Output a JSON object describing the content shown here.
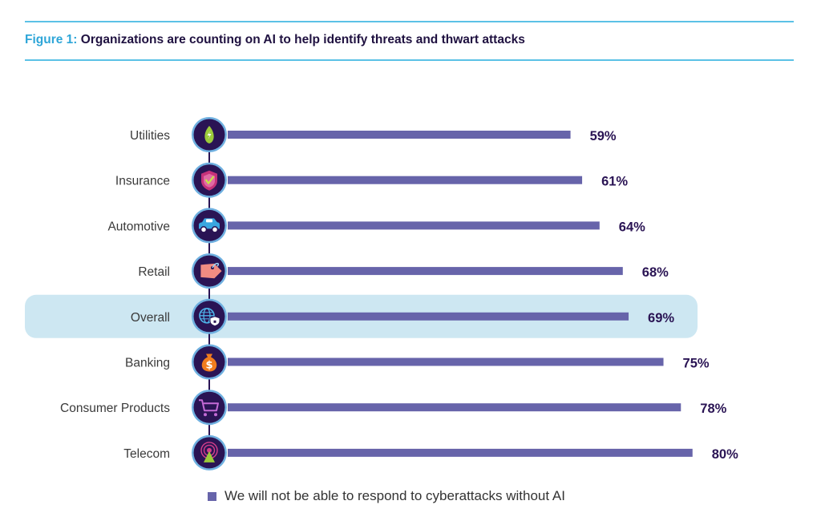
{
  "figure": {
    "number_label": "Figure 1:",
    "title": "Organizations are counting on AI to help identify threats and thwart attacks"
  },
  "colors": {
    "bar": "#6764aa",
    "value_text": "#2a1454",
    "highlight": "#cde7f2",
    "rule": "#5bc1e6",
    "icon_circle": "#2a1454",
    "icon_ring": "#6fb0e0"
  },
  "chart_data": {
    "type": "bar",
    "orientation": "horizontal",
    "categories": [
      "Utilities",
      "Insurance",
      "Automotive",
      "Retail",
      "Overall",
      "Banking",
      "Consumer Products",
      "Telecom"
    ],
    "series": [
      {
        "name": "We will not be able to respond to cyberattacks without AI",
        "values": [
          59,
          61,
          64,
          68,
          69,
          75,
          78,
          80
        ]
      }
    ],
    "value_labels": [
      "59%",
      "61%",
      "64%",
      "68%",
      "69%",
      "75%",
      "78%",
      "80%"
    ],
    "icons": [
      "leaf-bolt-icon",
      "shield-check-icon",
      "car-icon",
      "price-tag-icon",
      "globe-shield-icon",
      "money-bag-icon",
      "shopping-cart-icon",
      "signal-tower-icon"
    ],
    "highlighted_category": "Overall",
    "legend_position": "bottom"
  }
}
